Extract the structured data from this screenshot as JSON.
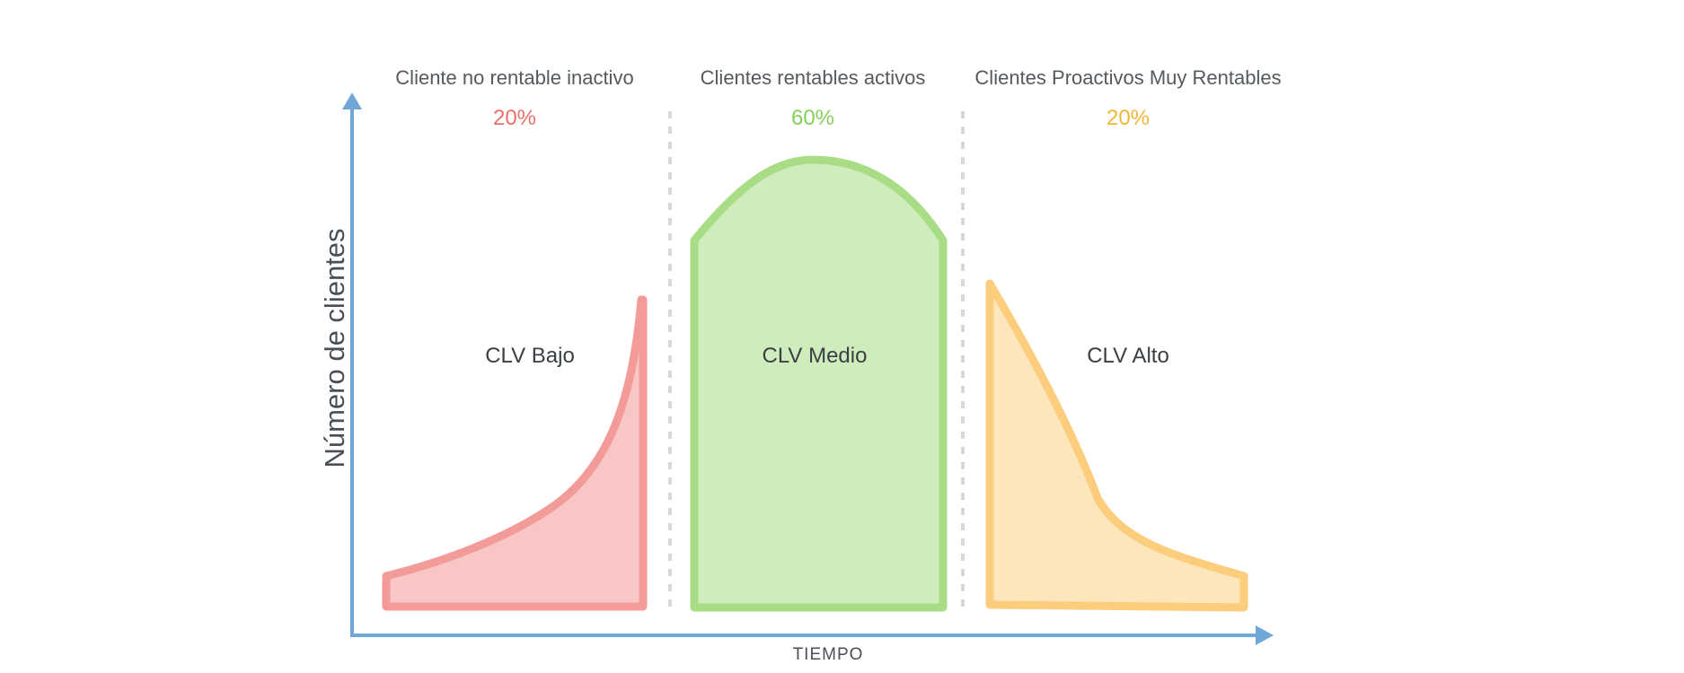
{
  "chart_data": {
    "type": "area",
    "xlabel": "TIEMPO",
    "ylabel": "Número de clientes",
    "segments": [
      {
        "title": "Cliente no rentable inactivo",
        "share": "20%",
        "clv_label": "CLV Bajo",
        "color": "#f39b98",
        "fill": "#f8c6c4",
        "pct_color": "#e8706b",
        "shape": "rising"
      },
      {
        "title": "Clientes rentables activos",
        "share": "60%",
        "clv_label": "CLV Medio",
        "color": "#a8dd86",
        "fill": "#cfedbc",
        "pct_color": "#86cf5a",
        "shape": "dome"
      },
      {
        "title": "Clientes Proactivos Muy Rentables",
        "share": "20%",
        "clv_label": "CLV Alto",
        "color": "#fbcd7c",
        "fill": "#fde6bc",
        "pct_color": "#f3b53a",
        "shape": "falling"
      }
    ],
    "axis_color": "#6fa8d6",
    "divider_color": "#d8d8d8"
  }
}
